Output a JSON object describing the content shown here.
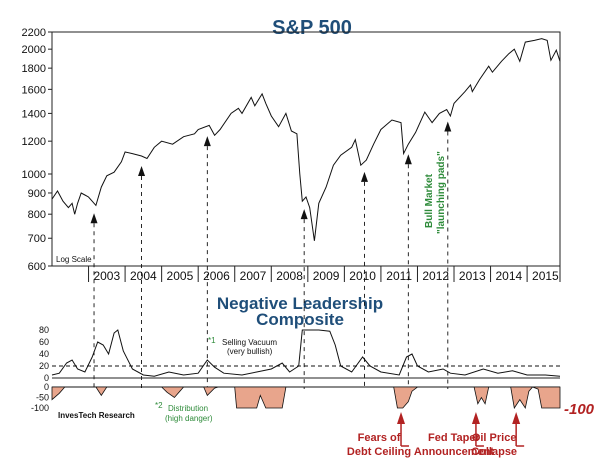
{
  "colors": {
    "title": "#1f4e79",
    "annotation_green": "#2e8b3a",
    "annotation_red": "#b22222",
    "fill_negative": "#e8a58c",
    "line": "#111111"
  },
  "chart_data": [
    {
      "type": "line",
      "title": "S&P 500",
      "scale": "log",
      "scale_label": "Log Scale",
      "ylim": [
        600,
        2200
      ],
      "y_ticks": [
        600,
        700,
        800,
        900,
        1000,
        1200,
        1400,
        1600,
        1800,
        2000,
        2200
      ],
      "x_ticks": [
        "2003",
        "2004",
        "2005",
        "2006",
        "2007",
        "2008",
        "2009",
        "2010",
        "2011",
        "2012",
        "2013",
        "2014",
        "2015"
      ],
      "xlim": [
        2002.0,
        2015.9
      ],
      "series": [
        {
          "points": [
            [
              2002.0,
              870
            ],
            [
              2002.15,
              910
            ],
            [
              2002.3,
              860
            ],
            [
              2002.45,
              830
            ],
            [
              2002.55,
              850
            ],
            [
              2002.62,
              800
            ],
            [
              2002.7,
              850
            ],
            [
              2002.8,
              900
            ],
            [
              2002.9,
              890
            ],
            [
              2003.0,
              880
            ],
            [
              2003.1,
              860
            ],
            [
              2003.2,
              840
            ],
            [
              2003.35,
              930
            ],
            [
              2003.5,
              990
            ],
            [
              2003.7,
              1010
            ],
            [
              2003.9,
              1070
            ],
            [
              2004.0,
              1130
            ],
            [
              2004.2,
              1120
            ],
            [
              2004.45,
              1105
            ],
            [
              2004.6,
              1090
            ],
            [
              2004.8,
              1160
            ],
            [
              2005.0,
              1200
            ],
            [
              2005.3,
              1180
            ],
            [
              2005.6,
              1230
            ],
            [
              2005.9,
              1250
            ],
            [
              2006.0,
              1280
            ],
            [
              2006.3,
              1310
            ],
            [
              2006.45,
              1240
            ],
            [
              2006.6,
              1280
            ],
            [
              2006.9,
              1400
            ],
            [
              2007.1,
              1440
            ],
            [
              2007.2,
              1400
            ],
            [
              2007.45,
              1530
            ],
            [
              2007.55,
              1460
            ],
            [
              2007.75,
              1560
            ],
            [
              2007.85,
              1480
            ],
            [
              2008.0,
              1380
            ],
            [
              2008.2,
              1300
            ],
            [
              2008.4,
              1400
            ],
            [
              2008.55,
              1270
            ],
            [
              2008.7,
              1250
            ],
            [
              2008.78,
              1000
            ],
            [
              2008.85,
              860
            ],
            [
              2008.95,
              880
            ],
            [
              2009.05,
              830
            ],
            [
              2009.18,
              690
            ],
            [
              2009.3,
              850
            ],
            [
              2009.5,
              930
            ],
            [
              2009.7,
              1050
            ],
            [
              2009.9,
              1110
            ],
            [
              2010.2,
              1160
            ],
            [
              2010.3,
              1210
            ],
            [
              2010.45,
              1050
            ],
            [
              2010.6,
              1080
            ],
            [
              2010.8,
              1180
            ],
            [
              2011.0,
              1280
            ],
            [
              2011.3,
              1350
            ],
            [
              2011.55,
              1330
            ],
            [
              2011.62,
              1120
            ],
            [
              2011.75,
              1180
            ],
            [
              2011.95,
              1260
            ],
            [
              2012.2,
              1410
            ],
            [
              2012.4,
              1330
            ],
            [
              2012.6,
              1400
            ],
            [
              2012.8,
              1430
            ],
            [
              2012.9,
              1380
            ],
            [
              2013.0,
              1480
            ],
            [
              2013.3,
              1580
            ],
            [
              2013.45,
              1640
            ],
            [
              2013.5,
              1580
            ],
            [
              2013.7,
              1690
            ],
            [
              2013.95,
              1820
            ],
            [
              2014.05,
              1760
            ],
            [
              2014.3,
              1870
            ],
            [
              2014.5,
              1950
            ],
            [
              2014.65,
              2000
            ],
            [
              2014.8,
              1870
            ],
            [
              2014.95,
              2080
            ],
            [
              2015.2,
              2100
            ],
            [
              2015.4,
              2120
            ],
            [
              2015.55,
              2100
            ],
            [
              2015.65,
              1880
            ],
            [
              2015.8,
              1990
            ],
            [
              2015.9,
              1870
            ]
          ]
        }
      ],
      "markers": [
        2003.15,
        2004.45,
        2006.25,
        2008.9,
        2010.55,
        2011.75,
        2012.83
      ],
      "annotations": [
        {
          "line1": "Bull Market",
          "line2": "\"launching pads\"",
          "color": "green"
        }
      ]
    },
    {
      "type": "line",
      "title": "Negative Leadership Composite",
      "title_lines": [
        "Negative Leadership",
        "Composite"
      ],
      "ylim": [
        -100,
        80
      ],
      "upper_ticks": [
        "80",
        "60",
        "40",
        "20",
        "0"
      ],
      "lower_ticks": [
        "0",
        "-50",
        "-100"
      ],
      "threshold_upper": 20,
      "series": [
        {
          "points": [
            [
              2002.0,
              5
            ],
            [
              2002.2,
              8
            ],
            [
              2002.4,
              25
            ],
            [
              2002.55,
              30
            ],
            [
              2002.7,
              15
            ],
            [
              2002.9,
              10
            ],
            [
              2003.1,
              35
            ],
            [
              2003.25,
              60
            ],
            [
              2003.4,
              55
            ],
            [
              2003.55,
              40
            ],
            [
              2003.7,
              75
            ],
            [
              2003.8,
              80
            ],
            [
              2003.95,
              45
            ],
            [
              2004.2,
              15
            ],
            [
              2004.5,
              5
            ],
            [
              2004.8,
              3
            ],
            [
              2005.2,
              10
            ],
            [
              2005.6,
              5
            ],
            [
              2006.0,
              8
            ],
            [
              2006.25,
              30
            ],
            [
              2006.45,
              18
            ],
            [
              2006.7,
              8
            ],
            [
              2007.2,
              5
            ],
            [
              2007.6,
              10
            ],
            [
              2008.0,
              15
            ],
            [
              2008.3,
              25
            ],
            [
              2008.5,
              10
            ],
            [
              2008.75,
              20
            ],
            [
              2008.85,
              80
            ],
            [
              2009.3,
              80
            ],
            [
              2009.6,
              78
            ],
            [
              2009.75,
              55
            ],
            [
              2009.9,
              20
            ],
            [
              2010.2,
              10
            ],
            [
              2010.5,
              35
            ],
            [
              2010.7,
              20
            ],
            [
              2011.0,
              10
            ],
            [
              2011.5,
              5
            ],
            [
              2011.7,
              35
            ],
            [
              2011.85,
              40
            ],
            [
              2012.0,
              20
            ],
            [
              2012.3,
              10
            ],
            [
              2012.7,
              15
            ],
            [
              2012.9,
              8
            ],
            [
              2013.3,
              5
            ],
            [
              2013.8,
              15
            ],
            [
              2014.2,
              8
            ],
            [
              2014.6,
              12
            ],
            [
              2015.0,
              5
            ],
            [
              2015.5,
              5
            ],
            [
              2015.9,
              3
            ]
          ]
        },
        {
          "points": [
            [
              2002.0,
              -60
            ],
            [
              2002.2,
              -30
            ],
            [
              2002.35,
              0
            ],
            [
              2003.2,
              0
            ],
            [
              2003.35,
              -40
            ],
            [
              2003.5,
              0
            ],
            [
              2005.0,
              0
            ],
            [
              2005.15,
              -25
            ],
            [
              2005.35,
              -50
            ],
            [
              2005.5,
              -20
            ],
            [
              2005.6,
              0
            ],
            [
              2006.15,
              0
            ],
            [
              2006.25,
              -40
            ],
            [
              2006.45,
              -5
            ],
            [
              2006.55,
              0
            ],
            [
              2007.0,
              0
            ],
            [
              2007.05,
              -100
            ],
            [
              2007.6,
              -100
            ],
            [
              2007.7,
              -40
            ],
            [
              2007.85,
              -100
            ],
            [
              2008.3,
              -100
            ],
            [
              2008.4,
              0
            ],
            [
              2011.35,
              0
            ],
            [
              2011.45,
              -100
            ],
            [
              2011.6,
              -100
            ],
            [
              2011.75,
              -70
            ],
            [
              2011.85,
              -20
            ],
            [
              2012.0,
              0
            ],
            [
              2013.55,
              0
            ],
            [
              2013.65,
              -80
            ],
            [
              2013.75,
              -50
            ],
            [
              2013.85,
              -80
            ],
            [
              2013.95,
              0
            ],
            [
              2014.55,
              0
            ],
            [
              2014.65,
              -100
            ],
            [
              2014.8,
              -60
            ],
            [
              2014.95,
              -100
            ],
            [
              2015.05,
              -20
            ],
            [
              2015.15,
              0
            ],
            [
              2015.3,
              -10
            ],
            [
              2015.4,
              -100
            ],
            [
              2015.9,
              -100
            ]
          ]
        }
      ],
      "big_label": "-100",
      "notes": [
        {
          "ref": "*1",
          "line1": "Selling Vacuum",
          "line2": "(very bullish)",
          "color": "green"
        },
        {
          "ref": "*2",
          "line1": "Distribution",
          "line2": "(high danger)",
          "color": "green"
        }
      ],
      "events": [
        {
          "x": 2011.55,
          "line1": "Fears of",
          "line2": "Debt Ceiling"
        },
        {
          "x": 2013.6,
          "line1": "Fed Taper",
          "line2": "Announcement"
        },
        {
          "x": 2014.7,
          "line1": "Oil Price",
          "line2": "Collapse"
        }
      ],
      "source": "InvesTech Research"
    }
  ]
}
